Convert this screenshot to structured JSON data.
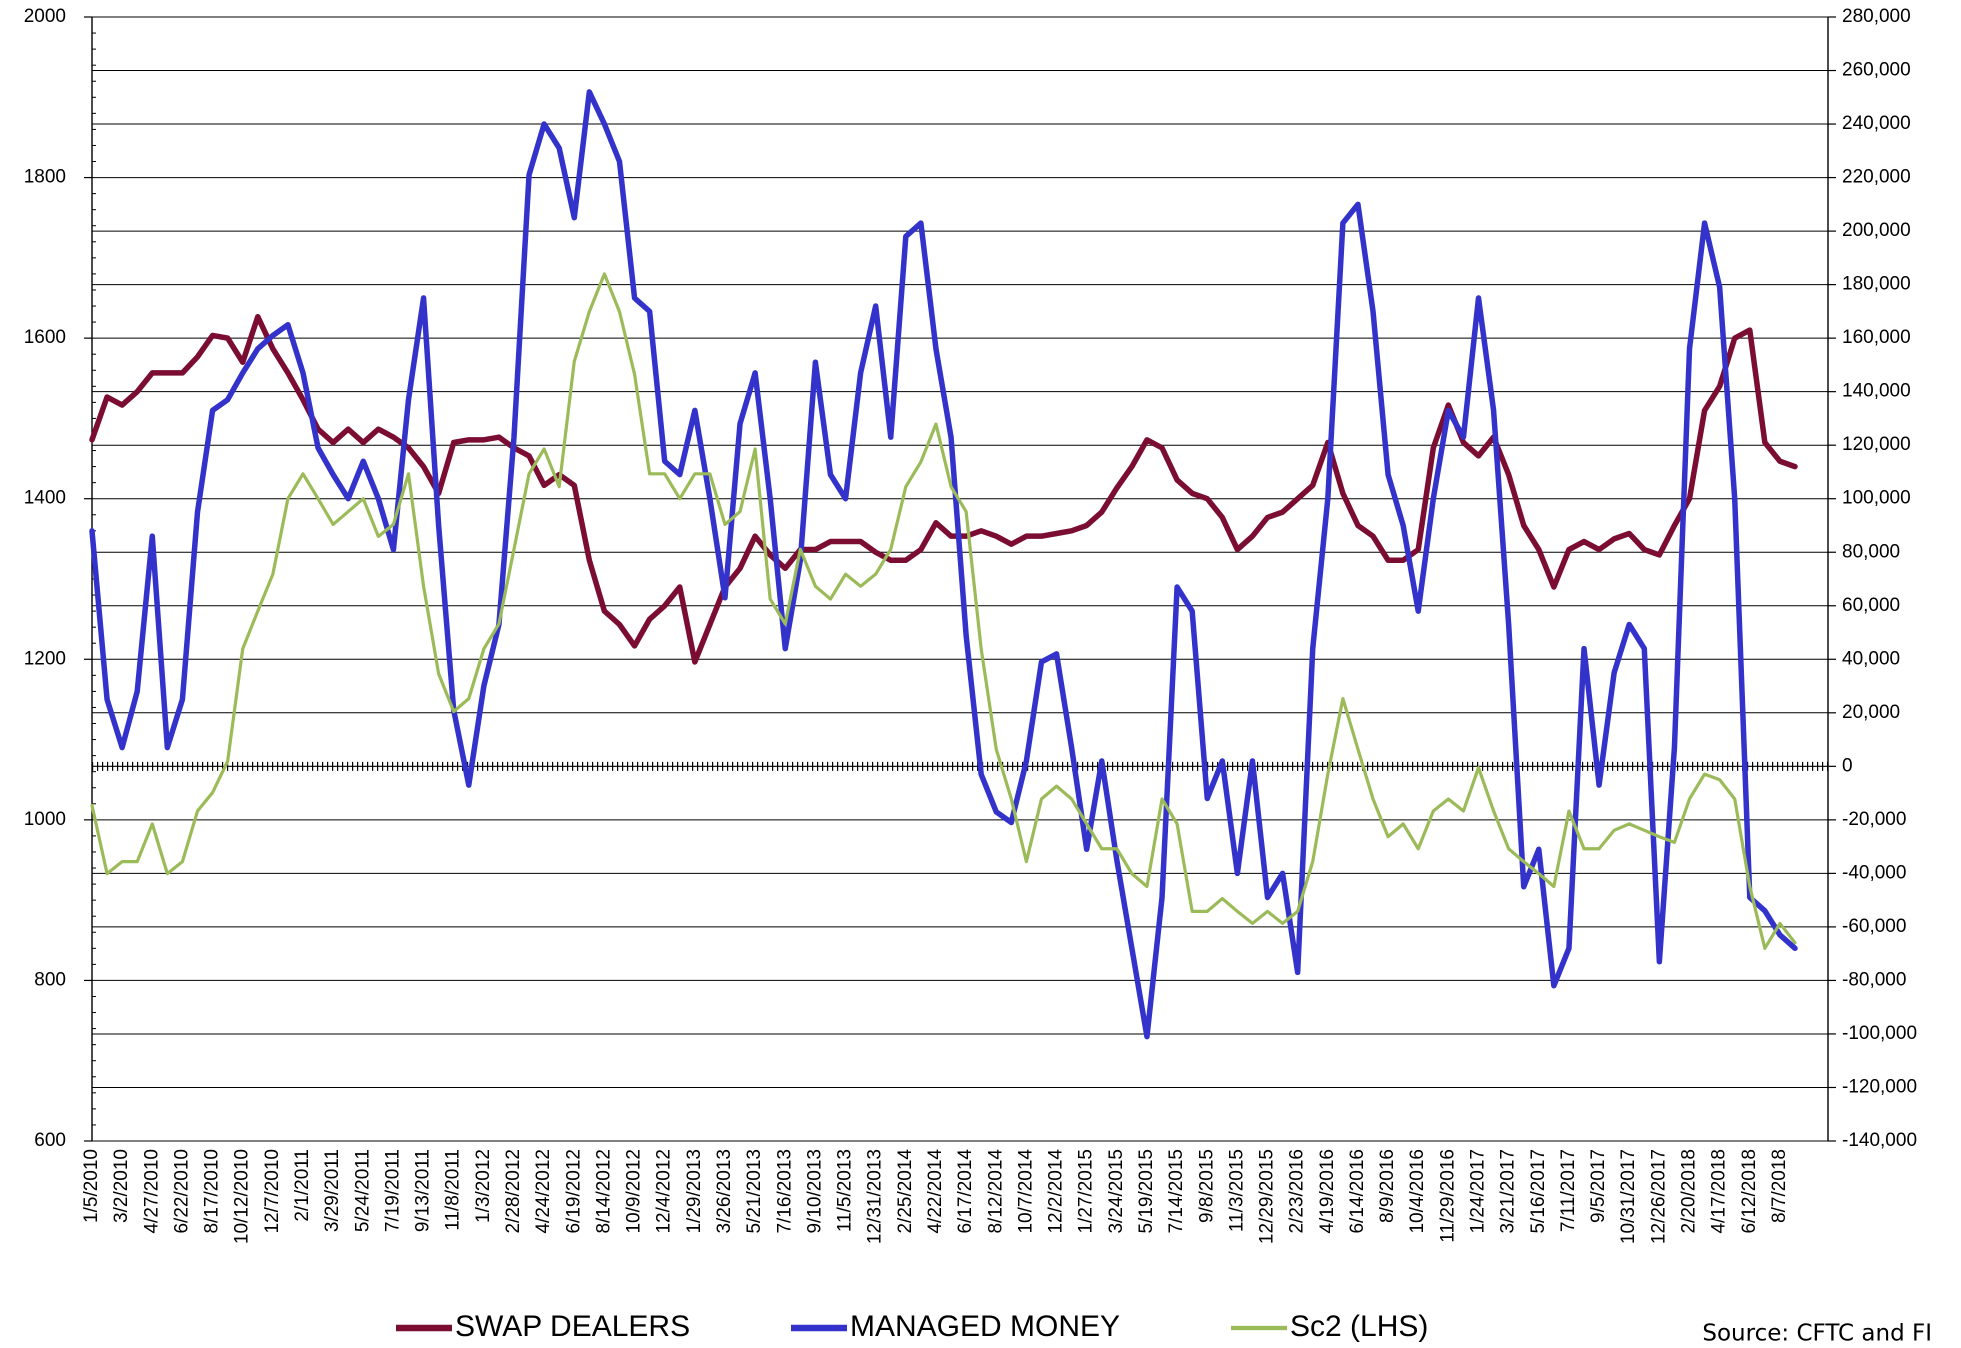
{
  "chart_data": {
    "type": "line",
    "categories": [
      "1/5/2010",
      null,
      "3/2/2010",
      null,
      "4/27/2010",
      null,
      "6/22/2010",
      null,
      "8/17/2010",
      null,
      "10/12/2010",
      null,
      "12/7/2010",
      null,
      "2/1/2011",
      null,
      "3/29/2011",
      null,
      "5/24/2011",
      null,
      "7/19/2011",
      null,
      "9/13/2011",
      null,
      "11/8/2011",
      null,
      "1/3/2012",
      null,
      "2/28/2012",
      null,
      "4/24/2012",
      null,
      "6/19/2012",
      null,
      "8/14/2012",
      null,
      "10/9/2012",
      null,
      "12/4/2012",
      null,
      "1/29/2013",
      null,
      "3/26/2013",
      null,
      "5/21/2013",
      null,
      "7/16/2013",
      null,
      "9/10/2013",
      null,
      "11/5/2013",
      null,
      "12/31/2013",
      null,
      "2/25/2014",
      null,
      "4/22/2014",
      null,
      "6/17/2014",
      null,
      "8/12/2014",
      null,
      "10/7/2014",
      null,
      "12/2/2014",
      null,
      "1/27/2015",
      null,
      "3/24/2015",
      null,
      "5/19/2015",
      null,
      "7/14/2015",
      null,
      "9/8/2015",
      null,
      "11/3/2015",
      null,
      "12/29/2015",
      null,
      "2/23/2016",
      null,
      "4/19/2016",
      null,
      "6/14/2016",
      null,
      "8/9/2016",
      null,
      "10/4/2016",
      null,
      "11/29/2016",
      null,
      "1/24/2017",
      null,
      "3/21/2017",
      null,
      "5/16/2017",
      null,
      "7/11/2017",
      null,
      "9/5/2017",
      null,
      "10/31/2017",
      null,
      "12/26/2017",
      null,
      "2/20/2018",
      null,
      "4/17/2018",
      null,
      "6/12/2018",
      null,
      "8/7/2018",
      null
    ],
    "series": [
      {
        "name": "SWAP DEALERS",
        "color": "#7b0d33",
        "axis": "y2",
        "values": [
          122000,
          138000,
          135000,
          140000,
          147000,
          147000,
          147000,
          153000,
          161000,
          160000,
          151000,
          168000,
          156000,
          147000,
          137000,
          126000,
          121000,
          126000,
          121000,
          126000,
          123000,
          119000,
          112000,
          102000,
          121000,
          122000,
          122000,
          123000,
          119000,
          116000,
          105000,
          109000,
          105000,
          77000,
          58000,
          53000,
          45000,
          55000,
          60000,
          67000,
          39000,
          53000,
          67000,
          74000,
          86000,
          79000,
          74000,
          81000,
          81000,
          84000,
          84000,
          84000,
          80000,
          77000,
          77000,
          81000,
          91000,
          86000,
          86000,
          88000,
          86000,
          83000,
          86000,
          86000,
          87000,
          88000,
          90000,
          95000,
          104000,
          112000,
          122000,
          119000,
          107000,
          102000,
          100000,
          93000,
          81000,
          86000,
          93000,
          95000,
          100000,
          105000,
          121000,
          102000,
          90000,
          86000,
          77000,
          77000,
          81000,
          119000,
          135000,
          121000,
          116000,
          123000,
          109000,
          90000,
          81000,
          67000,
          81000,
          84000,
          81000,
          85000,
          87000,
          81000,
          79000,
          90000,
          100000,
          133000,
          142000,
          160000,
          163000,
          121000,
          114000,
          112000
        ]
      },
      {
        "name": "MANAGED MONEY",
        "color": "#3333cc",
        "axis": "y2",
        "values": [
          88000,
          25000,
          7000,
          28000,
          86000,
          7000,
          25000,
          95000,
          133000,
          137000,
          147000,
          156000,
          161000,
          165000,
          147000,
          119000,
          109000,
          100000,
          114000,
          100000,
          81000,
          137000,
          175000,
          90000,
          21000,
          -7000,
          30000,
          53000,
          123000,
          221000,
          240000,
          231000,
          205000,
          252000,
          240000,
          226000,
          175000,
          170000,
          114000,
          109000,
          133000,
          100000,
          63000,
          128000,
          147000,
          100000,
          44000,
          77000,
          151000,
          109000,
          100000,
          147000,
          172000,
          123000,
          198000,
          203000,
          156000,
          123000,
          49000,
          -3000,
          -17000,
          -21000,
          2000,
          39000,
          42000,
          7000,
          -31000,
          2000,
          -35000,
          -68000,
          -101000,
          -49000,
          67000,
          58000,
          -12000,
          2000,
          -40000,
          2000,
          -49000,
          -40000,
          -77000,
          44000,
          100000,
          203000,
          210000,
          170000,
          109000,
          90000,
          58000,
          100000,
          133000,
          123000,
          175000,
          133000,
          53000,
          -45000,
          -31000,
          -82000,
          -68000,
          44000,
          -7000,
          35000,
          53000,
          44000,
          -73000,
          7000,
          156000,
          203000,
          179000,
          100000,
          -49000,
          -54000,
          -63000,
          -68000
        ]
      },
      {
        "name": "Sc2 (LHS)",
        "color": "#9bbb59",
        "values": [
          1018,
          933,
          948,
          948,
          995,
          933,
          948,
          1011,
          1034,
          1073,
          1213,
          1260,
          1306,
          1400,
          1431,
          1400,
          1368,
          1384,
          1400,
          1353,
          1368,
          1431,
          1291,
          1182,
          1135,
          1151,
          1213,
          1244,
          1337,
          1431,
          1462,
          1415,
          1571,
          1633,
          1680,
          1633,
          1555,
          1431,
          1431,
          1400,
          1431,
          1431,
          1368,
          1384,
          1462,
          1275,
          1244,
          1337,
          1291,
          1275,
          1306,
          1291,
          1306,
          1337,
          1415,
          1446,
          1493,
          1415,
          1384,
          1213,
          1088,
          1026,
          948,
          1026,
          1042,
          1026,
          995,
          964,
          964,
          933,
          917,
          1026,
          995,
          886,
          886,
          902,
          886,
          871,
          886,
          871,
          886,
          948,
          1057,
          1151,
          1088,
          1026,
          979,
          995,
          964,
          1011,
          1026,
          1011,
          1065,
          1011,
          964,
          948,
          933,
          917,
          1011,
          964,
          964,
          987,
          995,
          987,
          979,
          972,
          1026,
          1057,
          1050,
          1026,
          917,
          840,
          871,
          847
        ]
      }
    ],
    "ylim": [
      600,
      2000
    ],
    "yticks": [
      600,
      800,
      1000,
      1200,
      1400,
      1600,
      1800,
      2000
    ],
    "y2lim": [
      -140000,
      280000
    ],
    "y2ticks": [
      {
        "value": -140000,
        "label": "-140,000"
      },
      {
        "value": -120000,
        "label": "-120,000"
      },
      {
        "value": -100000,
        "label": "-100,000"
      },
      {
        "value": -80000,
        "label": "-80,000"
      },
      {
        "value": -60000,
        "label": "-60,000"
      },
      {
        "value": -40000,
        "label": "-40,000"
      },
      {
        "value": -20000,
        "label": "-20,000"
      },
      0,
      {
        "value": 20000,
        "label": "20,000"
      },
      {
        "value": 40000,
        "label": "40,000"
      },
      {
        "value": 60000,
        "label": "60,000"
      },
      {
        "value": 80000,
        "label": "80,000"
      },
      {
        "value": 100000,
        "label": "100,000"
      },
      {
        "value": 120000,
        "label": "120,000"
      },
      {
        "value": 140000,
        "label": "140,000"
      },
      {
        "value": 160000,
        "label": "160,000"
      },
      {
        "value": 180000,
        "label": "180,000"
      },
      {
        "value": 200000,
        "label": "200,000"
      },
      {
        "value": 220000,
        "label": "220,000"
      },
      {
        "value": 240000,
        "label": "240,000"
      },
      {
        "value": 260000,
        "label": "260,000"
      },
      {
        "value": 280000,
        "label": "280,000"
      }
    ],
    "grid": true,
    "legend": "bottom",
    "source": "Source: CFTC and FI"
  }
}
